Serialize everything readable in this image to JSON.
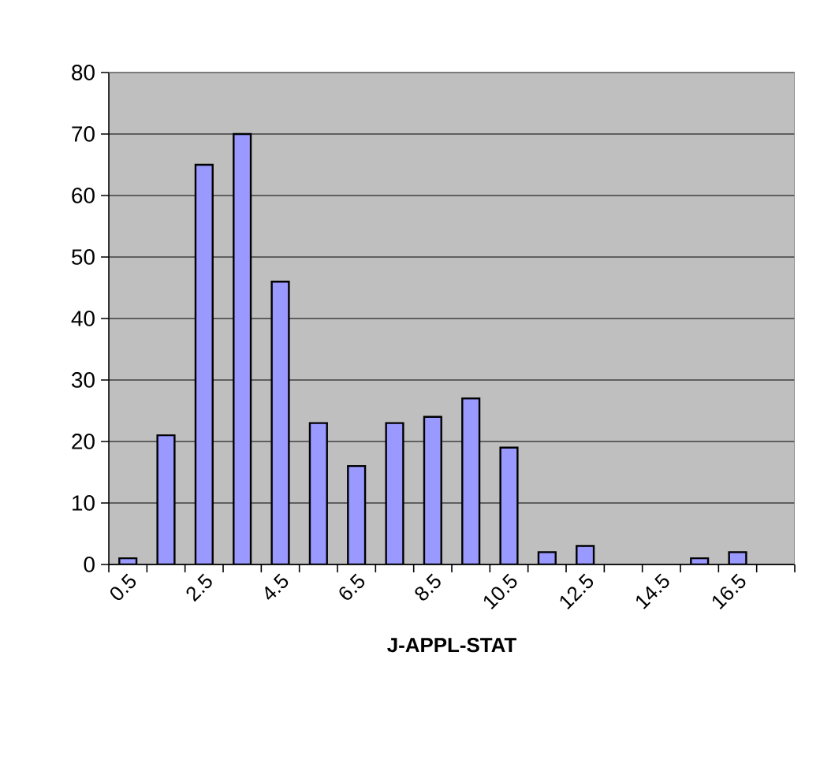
{
  "chart_data": {
    "type": "bar",
    "xlabel": "J-APPL-STAT",
    "categories": [
      "0.5",
      null,
      "2.5",
      null,
      "4.5",
      null,
      "6.5",
      null,
      "8.5",
      null,
      "10.5",
      null,
      "12.5",
      null,
      "14.5",
      null,
      "16.5",
      null
    ],
    "values": [
      1,
      21,
      65,
      70,
      46,
      23,
      16,
      23,
      24,
      27,
      19,
      2,
      3,
      null,
      null,
      1,
      2,
      null
    ],
    "color": "#9999ff",
    "ylim": [
      0,
      80
    ],
    "yticks": [
      0,
      10,
      20,
      30,
      40,
      50,
      60,
      70,
      80
    ],
    "grid": "y"
  }
}
